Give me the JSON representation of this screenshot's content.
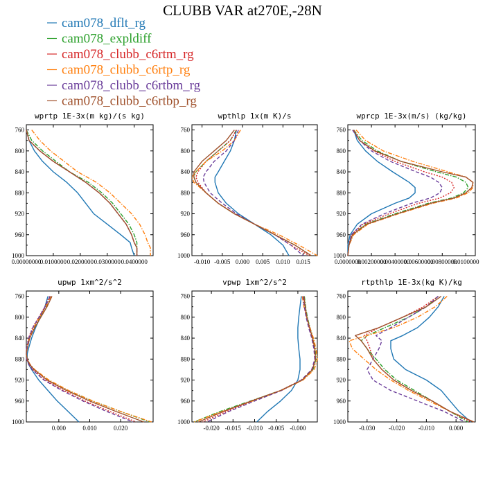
{
  "figure": {
    "title": "CLUBB VAR at270E,-28N"
  },
  "legend": [
    {
      "label": "cam078_dflt_rg",
      "color": "#1f77b4",
      "dash": "solid"
    },
    {
      "label": "cam078_expldiff",
      "color": "#2ca02c",
      "dash": "dashdot"
    },
    {
      "label": "cam078_clubb_c6rtm_rg",
      "color": "#d62728",
      "dash": "dotted"
    },
    {
      "label": "cam078_clubb_c6rtp_rg",
      "color": "#ff7f0e",
      "dash": "dashdot"
    },
    {
      "label": "cam078_clubb_c6rtbm_rg",
      "color": "#6a3d9a",
      "dash": "dashed"
    },
    {
      "label": "cam078_clubb_c6rtbp_rg",
      "color": "#a0522d",
      "dash": "solid"
    }
  ],
  "chart_data": [
    {
      "type": "line",
      "title": "wprtp  1E-3x(m kg)/(s kg)",
      "xlim": [
        0,
        0.047
      ],
      "ylim": [
        1000,
        750
      ],
      "xticks": [
        0,
        0.01,
        0.02,
        0.03,
        0.04
      ],
      "xticklabels": [
        "0.00000000",
        "0.0100000",
        "0.0200000",
        "0.0300000",
        "0.0400000"
      ],
      "yticks": [
        760,
        800,
        840,
        880,
        920,
        960,
        1000
      ],
      "yticklabels": [
        "760",
        "800",
        "840",
        "880",
        "920",
        "960",
        "1000"
      ],
      "levels": [
        760,
        780,
        800,
        820,
        840,
        860,
        880,
        900,
        920,
        940,
        960,
        975,
        985,
        1000
      ],
      "series": [
        {
          "name": "cam078_dflt_rg",
          "x": [
            0.0,
            0.001,
            0.003,
            0.006,
            0.01,
            0.015,
            0.019,
            0.022,
            0.025,
            0.03,
            0.035,
            0.0385,
            0.039,
            0.04
          ]
        },
        {
          "name": "cam078_expldiff",
          "x": [
            0.0,
            0.002,
            0.006,
            0.011,
            0.016,
            0.023,
            0.028,
            0.032,
            0.035,
            0.038,
            0.04,
            0.041,
            0.041,
            0.041
          ]
        },
        {
          "name": "cam078_clubb_c6rtm_rg",
          "x": [
            0.0,
            0.001,
            0.005,
            0.01,
            0.016,
            0.022,
            0.027,
            0.031,
            0.034,
            0.037,
            0.039,
            0.04,
            0.041,
            0.041
          ]
        },
        {
          "name": "cam078_clubb_c6rtp_rg",
          "x": [
            0.002,
            0.005,
            0.009,
            0.014,
            0.019,
            0.026,
            0.031,
            0.035,
            0.039,
            0.042,
            0.044,
            0.045,
            0.046,
            0.046
          ]
        },
        {
          "name": "cam078_clubb_c6rtbm_rg",
          "x": [
            0.0,
            0.001,
            0.005,
            0.01,
            0.016,
            0.022,
            0.027,
            0.031,
            0.034,
            0.037,
            0.039,
            0.04,
            0.041,
            0.041
          ]
        },
        {
          "name": "cam078_clubb_c6rtbp_rg",
          "x": [
            0.0,
            0.001,
            0.005,
            0.01,
            0.016,
            0.022,
            0.027,
            0.031,
            0.034,
            0.037,
            0.039,
            0.04,
            0.041,
            0.041
          ]
        }
      ]
    },
    {
      "type": "line",
      "title": "wpthlp  1x(m K)/s",
      "xlim": [
        -0.0125,
        0.0185
      ],
      "ylim": [
        1000,
        750
      ],
      "xticks": [
        -0.01,
        -0.005,
        0,
        0.005,
        0.01,
        0.015
      ],
      "xticklabels": [
        "-0.010",
        "-0.005",
        "0.000",
        "0.005",
        "0.010",
        "0.015"
      ],
      "yticks": [
        760,
        800,
        840,
        880,
        920,
        960,
        1000
      ],
      "yticklabels": [
        "760",
        "800",
        "840",
        "880",
        "920",
        "960",
        "1000"
      ],
      "levels": [
        760,
        780,
        800,
        820,
        840,
        850,
        860,
        880,
        900,
        920,
        940,
        960,
        980,
        1000
      ],
      "series": [
        {
          "name": "cam078_dflt_rg",
          "x": [
            -0.0015,
            -0.002,
            -0.003,
            -0.0045,
            -0.006,
            -0.0068,
            -0.0068,
            -0.006,
            -0.004,
            -0.001,
            0.003,
            0.007,
            0.01,
            0.0115
          ]
        },
        {
          "name": "cam078_expldiff",
          "x": [
            -0.0015,
            -0.003,
            -0.006,
            -0.009,
            -0.0115,
            -0.012,
            -0.0115,
            -0.009,
            -0.006,
            -0.002,
            0.003,
            0.008,
            0.013,
            0.017
          ]
        },
        {
          "name": "cam078_clubb_c6rtm_rg",
          "x": [
            -0.0015,
            -0.003,
            -0.006,
            -0.009,
            -0.011,
            -0.0115,
            -0.011,
            -0.009,
            -0.006,
            -0.002,
            0.003,
            0.008,
            0.012,
            0.0165
          ]
        },
        {
          "name": "cam078_clubb_c6rtp_rg",
          "x": [
            -0.0005,
            -0.002,
            -0.005,
            -0.009,
            -0.0115,
            -0.0125,
            -0.012,
            -0.009,
            -0.006,
            -0.002,
            0.003,
            0.009,
            0.014,
            0.0185
          ]
        },
        {
          "name": "cam078_clubb_c6rtbm_rg",
          "x": [
            -0.001,
            -0.002,
            -0.004,
            -0.007,
            -0.009,
            -0.0097,
            -0.0095,
            -0.008,
            -0.005,
            -0.0015,
            0.003,
            0.008,
            0.012,
            0.015
          ]
        },
        {
          "name": "cam078_clubb_c6rtbp_rg",
          "x": [
            -0.002,
            -0.004,
            -0.007,
            -0.01,
            -0.012,
            -0.012,
            -0.0115,
            -0.009,
            -0.006,
            -0.002,
            0.003,
            0.008,
            0.013,
            0.017
          ]
        }
      ]
    },
    {
      "type": "line",
      "title": "wprcp  1E-3x(m/s) (kg/kg)",
      "xlim": [
        0,
        0.0108
      ],
      "ylim": [
        1000,
        750
      ],
      "xticks": [
        0,
        0.002,
        0.004,
        0.006,
        0.008,
        0.01
      ],
      "xticklabels": [
        "0.0000000",
        "0.00200000",
        "0.00400000",
        "0.00600000",
        "0.00800000",
        "0.0100000"
      ],
      "yticks": [
        760,
        800,
        840,
        880,
        920,
        960,
        1000
      ],
      "yticklabels": [
        "760",
        "800",
        "840",
        "880",
        "920",
        "960",
        "1000"
      ],
      "levels": [
        760,
        780,
        800,
        820,
        840,
        850,
        860,
        870,
        880,
        890,
        900,
        920,
        940,
        960,
        980,
        1000
      ],
      "series": [
        {
          "name": "cam078_dflt_rg",
          "x": [
            0.0005,
            0.0008,
            0.0015,
            0.0025,
            0.0038,
            0.0045,
            0.0052,
            0.0057,
            0.0057,
            0.0052,
            0.004,
            0.002,
            0.0008,
            0.0002,
            0.0,
            0.0
          ]
        },
        {
          "name": "cam078_expldiff",
          "x": [
            0.0005,
            0.0012,
            0.0025,
            0.0045,
            0.0075,
            0.0092,
            0.01,
            0.0102,
            0.0098,
            0.0088,
            0.0068,
            0.004,
            0.0015,
            0.0004,
            0.0001,
            0.0
          ]
        },
        {
          "name": "cam078_clubb_c6rtm_rg",
          "x": [
            0.0005,
            0.001,
            0.0022,
            0.004,
            0.0065,
            0.008,
            0.0088,
            0.009,
            0.0087,
            0.0078,
            0.006,
            0.0035,
            0.0013,
            0.0003,
            0.0001,
            0.0
          ]
        },
        {
          "name": "cam078_clubb_c6rtp_rg",
          "x": [
            0.0007,
            0.0015,
            0.003,
            0.0055,
            0.0085,
            0.01,
            0.0106,
            0.0106,
            0.0102,
            0.0092,
            0.0072,
            0.0043,
            0.0017,
            0.0005,
            0.0001,
            0.0
          ]
        },
        {
          "name": "cam078_clubb_c6rtbm_rg",
          "x": [
            0.0004,
            0.001,
            0.002,
            0.0036,
            0.0058,
            0.007,
            0.0077,
            0.008,
            0.0078,
            0.007,
            0.0054,
            0.0031,
            0.0012,
            0.0003,
            0.0001,
            0.0
          ]
        },
        {
          "name": "cam078_clubb_c6rtbp_rg",
          "x": [
            0.0005,
            0.001,
            0.0023,
            0.0045,
            0.008,
            0.01,
            0.0106,
            0.0105,
            0.01,
            0.009,
            0.007,
            0.0042,
            0.0016,
            0.0004,
            0.0001,
            0.0
          ]
        }
      ]
    },
    {
      "type": "line",
      "title": "upwp  1xm^2/s^2",
      "xlim": [
        -0.0105,
        0.0305
      ],
      "ylim": [
        1000,
        750
      ],
      "xticks": [
        0,
        0.01,
        0.02
      ],
      "xticklabels": [
        "0.000",
        "0.010",
        "0.020"
      ],
      "yticks": [
        760,
        800,
        840,
        880,
        920,
        960,
        1000
      ],
      "yticklabels": [
        "760",
        "800",
        "840",
        "880",
        "920",
        "960",
        "1000"
      ],
      "levels": [
        760,
        780,
        800,
        820,
        840,
        860,
        870,
        880,
        890,
        900,
        920,
        940,
        960,
        980,
        1000
      ],
      "series": [
        {
          "name": "cam078_dflt_rg",
          "x": [
            -0.0035,
            -0.0045,
            -0.006,
            -0.0075,
            -0.0088,
            -0.0098,
            -0.0102,
            -0.0102,
            -0.0098,
            -0.0088,
            -0.0065,
            -0.0035,
            -0.0005,
            0.003,
            0.0065
          ]
        },
        {
          "name": "cam078_expldiff",
          "x": [
            -0.0025,
            -0.004,
            -0.006,
            -0.008,
            -0.0095,
            -0.0103,
            -0.0105,
            -0.0103,
            -0.0095,
            -0.008,
            -0.0035,
            0.003,
            0.011,
            0.02,
            0.0295
          ]
        },
        {
          "name": "cam078_clubb_c6rtm_rg",
          "x": [
            -0.003,
            -0.0045,
            -0.0065,
            -0.0085,
            -0.0098,
            -0.0104,
            -0.0105,
            -0.0104,
            -0.0097,
            -0.0085,
            -0.0045,
            0.0015,
            0.0085,
            0.0165,
            0.025
          ]
        },
        {
          "name": "cam078_clubb_c6rtp_rg",
          "x": [
            -0.0025,
            -0.0042,
            -0.0062,
            -0.0082,
            -0.0096,
            -0.0103,
            -0.0105,
            -0.0102,
            -0.0093,
            -0.0078,
            -0.0032,
            0.0032,
            0.011,
            0.02,
            0.03
          ]
        },
        {
          "name": "cam078_clubb_c6rtbm_rg",
          "x": [
            -0.0028,
            -0.0044,
            -0.0064,
            -0.0084,
            -0.0097,
            -0.0104,
            -0.0105,
            -0.0104,
            -0.0097,
            -0.0086,
            -0.0048,
            0.001,
            0.0078,
            0.0155,
            0.024
          ]
        },
        {
          "name": "cam078_clubb_c6rtbp_rg",
          "x": [
            -0.0022,
            -0.0038,
            -0.0058,
            -0.0078,
            -0.0094,
            -0.0102,
            -0.0105,
            -0.0102,
            -0.0094,
            -0.008,
            -0.0038,
            0.0025,
            0.01,
            0.0185,
            0.0275
          ]
        }
      ]
    },
    {
      "type": "line",
      "title": "vpwp  1xm^2/s^2",
      "xlim": [
        -0.0245,
        0.0045
      ],
      "ylim": [
        1000,
        750
      ],
      "xticks": [
        -0.02,
        -0.015,
        -0.01,
        -0.005,
        0
      ],
      "xticklabels": [
        "-0.020",
        "-0.015",
        "-0.010",
        "-0.005",
        "-0.000"
      ],
      "yticks": [
        760,
        800,
        840,
        880,
        920,
        960,
        1000
      ],
      "yticklabels": [
        "760",
        "800",
        "840",
        "880",
        "920",
        "960",
        "1000"
      ],
      "levels": [
        760,
        780,
        800,
        820,
        840,
        860,
        880,
        900,
        920,
        940,
        960,
        980,
        1000
      ],
      "series": [
        {
          "name": "cam078_dflt_rg",
          "x": [
            0.0008,
            0.0005,
            0.0002,
            0.0,
            0.0,
            0.0002,
            0.0005,
            0.0005,
            0.0,
            -0.0015,
            -0.004,
            -0.007,
            -0.0095
          ]
        },
        {
          "name": "cam078_expldiff",
          "x": [
            0.0015,
            0.0018,
            0.0022,
            0.0028,
            0.0035,
            0.004,
            0.0042,
            0.0035,
            0.001,
            -0.004,
            -0.011,
            -0.018,
            -0.024
          ]
        },
        {
          "name": "cam078_clubb_c6rtm_rg",
          "x": [
            0.0012,
            0.0015,
            0.002,
            0.0026,
            0.0033,
            0.0038,
            0.004,
            0.0033,
            0.0008,
            -0.004,
            -0.0105,
            -0.0165,
            -0.022
          ]
        },
        {
          "name": "cam078_clubb_c6rtp_rg",
          "x": [
            0.001,
            0.0014,
            0.002,
            0.0028,
            0.0036,
            0.0042,
            0.0045,
            0.0038,
            0.0012,
            -0.0038,
            -0.0105,
            -0.0175,
            -0.024
          ]
        },
        {
          "name": "cam078_clubb_c6rtbm_rg",
          "x": [
            0.0012,
            0.0015,
            0.0019,
            0.0025,
            0.0032,
            0.0037,
            0.0039,
            0.0032,
            0.0008,
            -0.0038,
            -0.01,
            -0.016,
            -0.021
          ]
        },
        {
          "name": "cam078_clubb_c6rtbp_rg",
          "x": [
            0.0014,
            0.0017,
            0.0021,
            0.0027,
            0.0034,
            0.0039,
            0.0041,
            0.0034,
            0.001,
            -0.004,
            -0.0108,
            -0.0172,
            -0.023
          ]
        }
      ]
    },
    {
      "type": "line",
      "title": "rtpthlp  1E-3x(kg K)/kg",
      "xlim": [
        -0.0365,
        0.0065
      ],
      "ylim": [
        1000,
        750
      ],
      "xticks": [
        -0.03,
        -0.02,
        -0.01,
        0
      ],
      "xticklabels": [
        "-0.030",
        "-0.020",
        "-0.010",
        "0.000"
      ],
      "yticks": [
        760,
        800,
        840,
        880,
        920,
        960,
        1000
      ],
      "yticklabels": [
        "760",
        "800",
        "840",
        "880",
        "920",
        "960",
        "1000"
      ],
      "levels": [
        760,
        780,
        800,
        820,
        835,
        845,
        860,
        880,
        900,
        920,
        940,
        960,
        980,
        1000
      ],
      "series": [
        {
          "name": "cam078_dflt_rg",
          "x": [
            -0.004,
            -0.006,
            -0.009,
            -0.013,
            -0.018,
            -0.022,
            -0.022,
            -0.021,
            -0.017,
            -0.01,
            -0.005,
            -0.002,
            0.001,
            0.005
          ]
        },
        {
          "name": "cam078_expldiff",
          "x": [
            -0.006,
            -0.01,
            -0.016,
            -0.024,
            -0.03,
            -0.032,
            -0.03,
            -0.027,
            -0.024,
            -0.02,
            -0.014,
            -0.008,
            -0.002,
            0.004
          ]
        },
        {
          "name": "cam078_clubb_c6rtm_rg",
          "x": [
            -0.006,
            -0.011,
            -0.018,
            -0.026,
            -0.031,
            -0.03,
            -0.029,
            -0.028,
            -0.025,
            -0.021,
            -0.015,
            -0.008,
            -0.002,
            0.005
          ]
        },
        {
          "name": "cam078_clubb_c6rtp_rg",
          "x": [
            -0.003,
            -0.007,
            -0.013,
            -0.021,
            -0.03,
            -0.036,
            -0.035,
            -0.031,
            -0.027,
            -0.022,
            -0.016,
            -0.009,
            -0.002,
            0.006
          ]
        },
        {
          "name": "cam078_clubb_c6rtbm_rg",
          "x": [
            -0.006,
            -0.01,
            -0.016,
            -0.022,
            -0.027,
            -0.025,
            -0.026,
            -0.028,
            -0.03,
            -0.028,
            -0.022,
            -0.013,
            -0.004,
            0.003
          ]
        },
        {
          "name": "cam078_clubb_c6rtbp_rg",
          "x": [
            -0.005,
            -0.01,
            -0.018,
            -0.026,
            -0.034,
            -0.032,
            -0.03,
            -0.028,
            -0.025,
            -0.021,
            -0.015,
            -0.008,
            -0.002,
            0.006
          ]
        }
      ]
    }
  ]
}
